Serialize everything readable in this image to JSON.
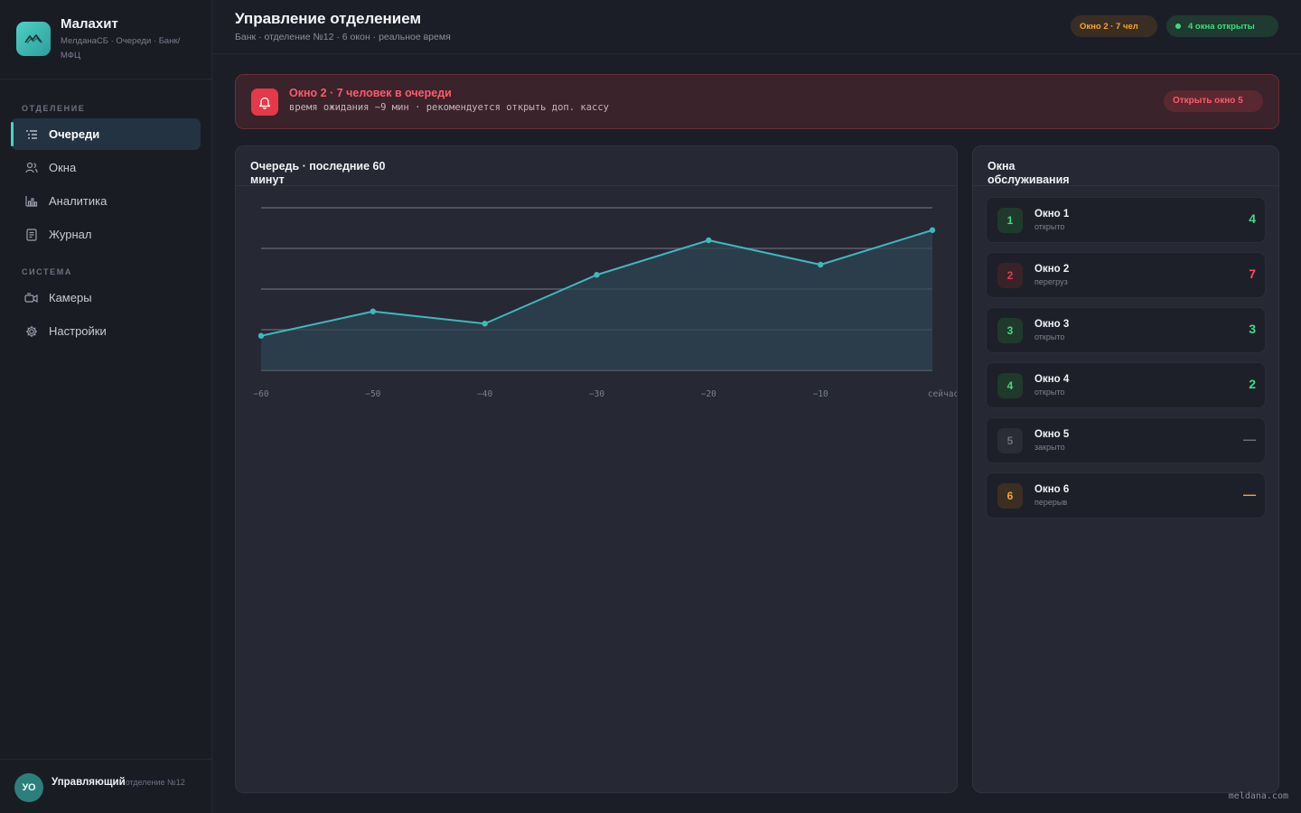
{
  "brand": {
    "title": "Малахит",
    "subtitle": "МелданаСБ · Очереди · Банк/МФЦ",
    "logo_icon": "mountains-icon"
  },
  "sidebar": {
    "section_branch": "ОТДЕЛЕНИЕ",
    "section_system": "СИСТЕМА",
    "items": [
      {
        "label": "Очереди",
        "icon": "list-icon",
        "active": true
      },
      {
        "label": "Окна",
        "icon": "users-icon"
      },
      {
        "label": "Аналитика",
        "icon": "bar-chart-icon"
      },
      {
        "label": "Журнал",
        "icon": "document-icon"
      },
      {
        "label": "Камеры",
        "icon": "camera-icon"
      },
      {
        "label": "Настройки",
        "icon": "gear-icon"
      }
    ]
  },
  "user": {
    "initials": "УО",
    "name": "Управляющий",
    "role": "отделение №12"
  },
  "header": {
    "title": "Управление отделением",
    "subtitle": "Банк · отделение №12 · 6 окон · реальное время",
    "pill_warn": "Окно 2 · 7 чел",
    "pill_ok": "4 окна открыты"
  },
  "alert": {
    "title": "Окно 2 · 7 человек в очереди",
    "description": "время ожидания ~9 мин · рекомендуется открыть доп. кассу",
    "action": "Открыть окно 5"
  },
  "chart_panel": {
    "title": "Очередь · последние 60 минут"
  },
  "chart_data": {
    "type": "area",
    "x": [
      -60,
      -50,
      -40,
      -30,
      -20,
      -10,
      0
    ],
    "x_tick_labels": [
      "−60",
      "−50",
      "−40",
      "−30",
      "−20",
      "−10",
      "сейчас"
    ],
    "values": [
      1.7,
      2.9,
      2.3,
      4.7,
      6.4,
      5.2,
      6.9
    ],
    "ylim": [
      0,
      8
    ],
    "grid": true,
    "color": "#3fb8bd"
  },
  "windows_panel": {
    "title": "Окна обслуживания",
    "items": [
      {
        "num": "1",
        "name": "Окно 1",
        "status": "открыто",
        "count": "4",
        "state": "open"
      },
      {
        "num": "2",
        "name": "Окно 2",
        "status": "перегруз",
        "count": "7",
        "state": "over"
      },
      {
        "num": "3",
        "name": "Окно 3",
        "status": "открыто",
        "count": "3",
        "state": "open"
      },
      {
        "num": "4",
        "name": "Окно 4",
        "status": "открыто",
        "count": "2",
        "state": "open"
      },
      {
        "num": "5",
        "name": "Окно 5",
        "status": "закрыто",
        "count": "—",
        "state": "closed"
      },
      {
        "num": "6",
        "name": "Окно 6",
        "status": "перерыв",
        "count": "—",
        "state": "break"
      }
    ]
  },
  "watermark": "meldana.com"
}
